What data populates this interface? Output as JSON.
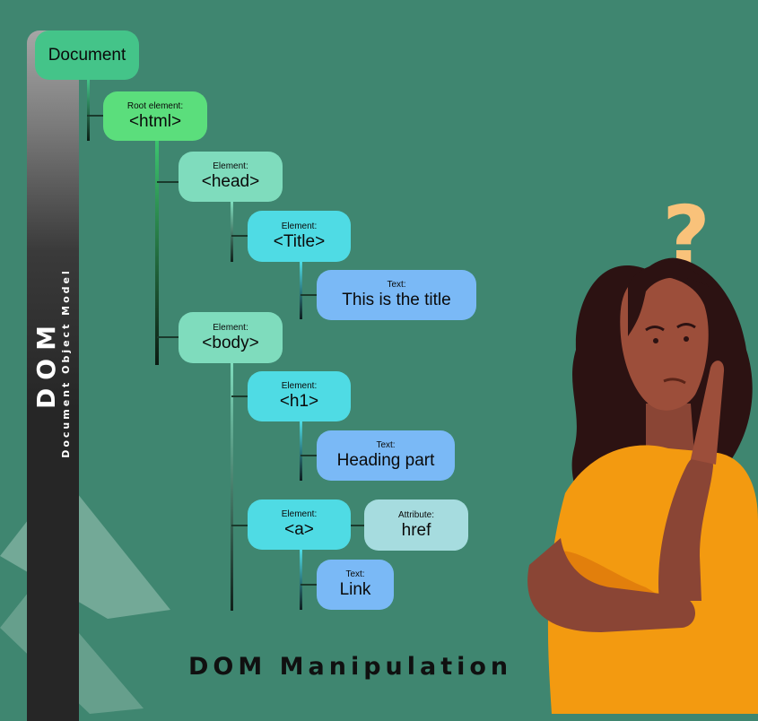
{
  "sidebar": {
    "title": "DOM",
    "subtitle": "Document Object Model"
  },
  "tree": {
    "document": {
      "name": "Document"
    },
    "html": {
      "kind": "Root element:",
      "name": "<html>"
    },
    "head": {
      "kind": "Element:",
      "name": "<head>"
    },
    "title": {
      "kind": "Element:",
      "name": "<Title>"
    },
    "title_text": {
      "kind": "Text:",
      "name": "This is the title"
    },
    "body": {
      "kind": "Element:",
      "name": "<body>"
    },
    "h1": {
      "kind": "Element:",
      "name": "<h1>"
    },
    "h1_text": {
      "kind": "Text:",
      "name": "Heading part"
    },
    "a": {
      "kind": "Element:",
      "name": "<a>"
    },
    "href": {
      "kind": "Attribute:",
      "name": "href"
    },
    "link_text": {
      "kind": "Text:",
      "name": "Link"
    }
  },
  "footer": {
    "title": "DOM Manipulation"
  },
  "illustration": {
    "symbol": "?"
  },
  "colors": {
    "background": "#3f8670",
    "root_node": "#5bde7c",
    "branch_node": "#7fdcbd",
    "element_node": "#4fdbe4",
    "text_node": "#7ab9f6",
    "attribute_node": "#a6dcdf",
    "shirt": "#f39a10",
    "question_mark": "#f9c27a"
  }
}
